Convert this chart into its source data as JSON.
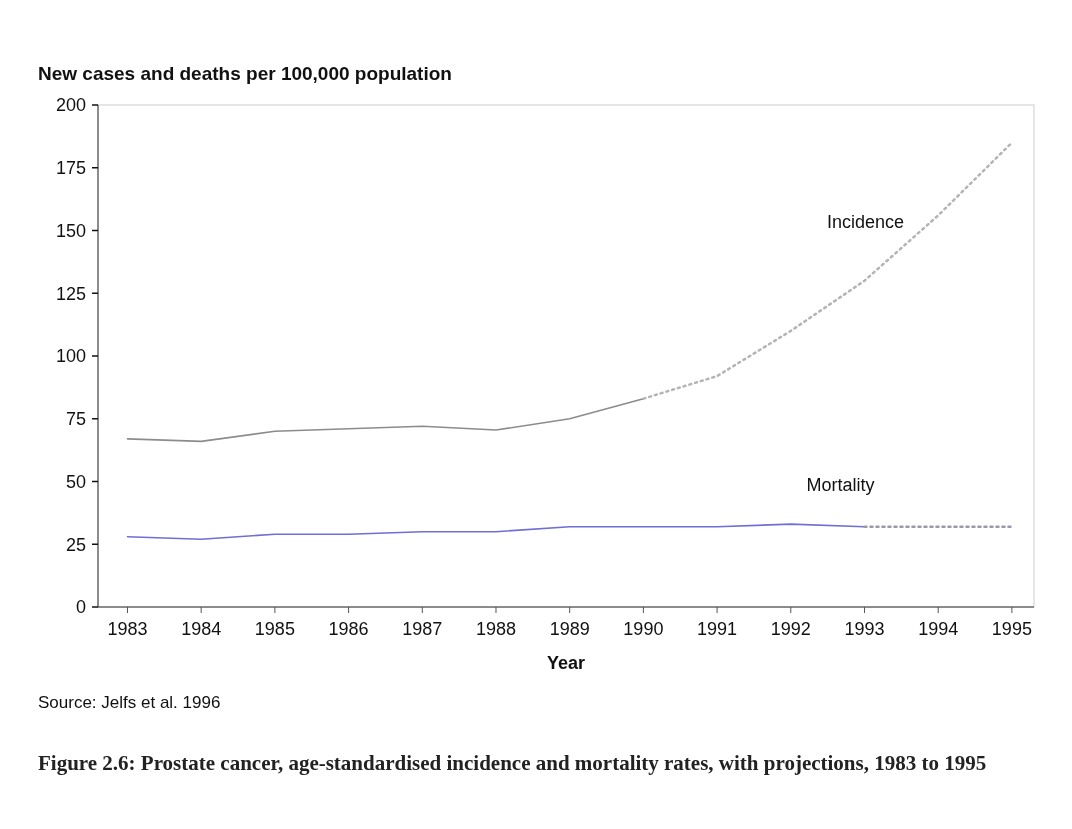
{
  "chart_data": {
    "type": "line",
    "title": "Figure 2.6: Prostate cancer, age-standardised incidence and mortality rates, with projections, 1983 to 1995",
    "ylabel": "New cases and deaths per 100,000 population",
    "xlabel": "Year",
    "annotations": [
      "Source: Jelfs et al. 1996"
    ],
    "x": [
      1983,
      1984,
      1985,
      1986,
      1987,
      1988,
      1989,
      1990,
      1991,
      1992,
      1993,
      1994,
      1995
    ],
    "xlim": [
      1982.6,
      1995.3
    ],
    "xticks": [
      1983,
      1984,
      1985,
      1986,
      1987,
      1988,
      1989,
      1990,
      1991,
      1992,
      1993,
      1994,
      1995
    ],
    "ylim": [
      0,
      200
    ],
    "yticks": [
      0,
      25,
      50,
      75,
      100,
      125,
      150,
      175,
      200
    ],
    "grid": false,
    "series": [
      {
        "color": "#8c8c8c",
        "line_style": "solid",
        "values": [
          67,
          66,
          70,
          71,
          72,
          70.5,
          75,
          83,
          null,
          null,
          null,
          null,
          null
        ]
      },
      {
        "name": "Incidence",
        "color": "#b4b4b4",
        "line_style": "dotted",
        "values": [
          null,
          null,
          null,
          null,
          null,
          null,
          null,
          83,
          92,
          110,
          130,
          156,
          185
        ]
      },
      {
        "name": "Mortality",
        "color": "#6f6fd6",
        "line_style": "solid",
        "values": [
          28,
          27,
          29,
          29,
          30,
          30,
          32,
          32,
          32,
          33,
          32,
          null,
          null
        ]
      },
      {
        "color": "#9a9aaa",
        "line_style": "dotted",
        "values": [
          null,
          null,
          null,
          null,
          null,
          null,
          null,
          null,
          null,
          null,
          32,
          32,
          32
        ]
      }
    ]
  }
}
